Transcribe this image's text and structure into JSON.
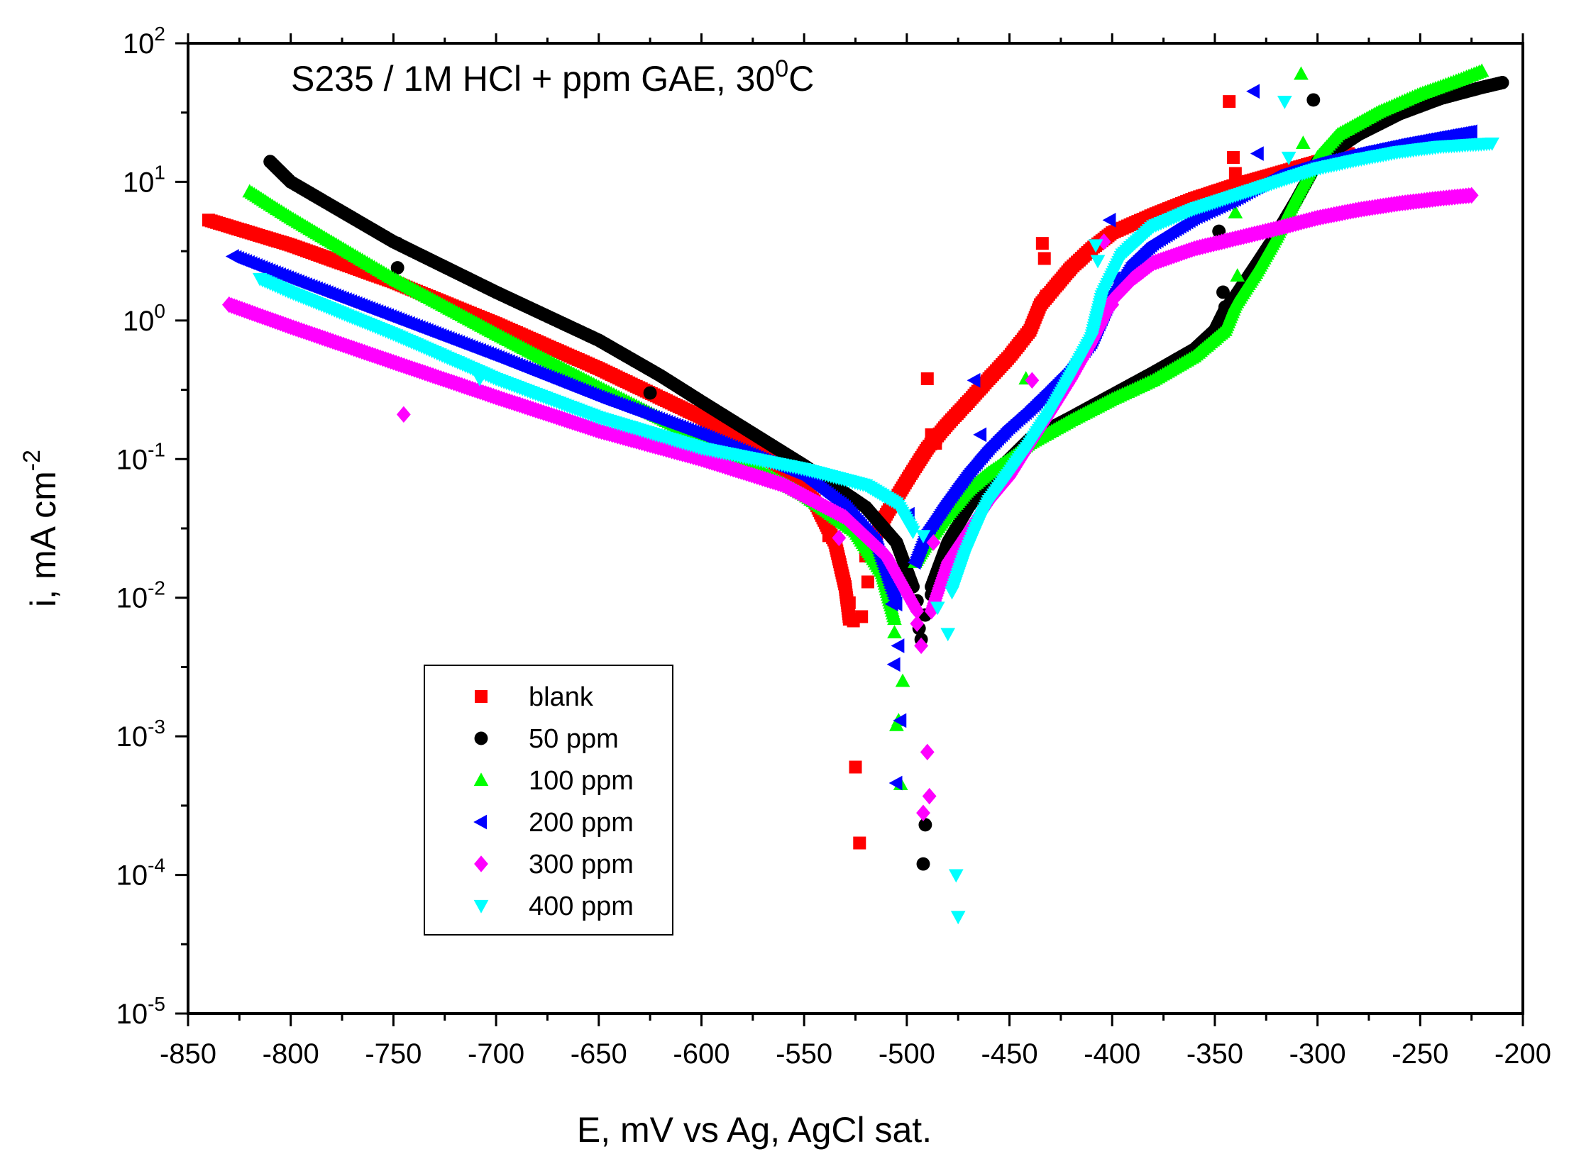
{
  "chart_data": {
    "type": "scatter",
    "title": "S235 / 1M HCl + ppm GAE, 30",
    "title_superscript": "0",
    "title_suffix": "C",
    "xlabel": "E, mV vs Ag, AgCl sat.",
    "ylabel": "i, mA cm",
    "ylabel_superscript": "-2",
    "xlim": [
      -850,
      -200
    ],
    "ylim": [
      1e-05,
      100
    ],
    "y_scale": "log",
    "x_ticks": [
      -850,
      -800,
      -750,
      -700,
      -650,
      -600,
      -550,
      -500,
      -450,
      -400,
      -350,
      -300,
      -250,
      -200
    ],
    "x_tick_labels": [
      "-850",
      "-800",
      "-750",
      "-700",
      "-650",
      "-600",
      "-550",
      "-500",
      "-450",
      "-400",
      "-350",
      "-300",
      "-250",
      "-200"
    ],
    "y_tick_labels": [
      {
        "value": 100,
        "base": "10",
        "exp": "2"
      },
      {
        "value": 10,
        "base": "10",
        "exp": "1"
      },
      {
        "value": 1,
        "base": "10",
        "exp": "0"
      },
      {
        "value": 0.1,
        "base": "10",
        "exp": "-1"
      },
      {
        "value": 0.01,
        "base": "10",
        "exp": "-2"
      },
      {
        "value": 0.001,
        "base": "10",
        "exp": "-3"
      },
      {
        "value": 0.0001,
        "base": "10",
        "exp": "-4"
      },
      {
        "value": 1e-05,
        "base": "10",
        "exp": "-5"
      }
    ],
    "grid": false,
    "legend_position": "bottom-left",
    "series": [
      {
        "name": "blank",
        "marker": "square",
        "color": "#ff0000",
        "cathodic_branch": [
          [
            -840,
            5.3
          ],
          [
            -800,
            3.5
          ],
          [
            -750,
            1.9
          ],
          [
            -700,
            0.95
          ],
          [
            -650,
            0.45
          ],
          [
            -600,
            0.2
          ],
          [
            -560,
            0.085
          ],
          [
            -545,
            0.05
          ],
          [
            -535,
            0.025
          ],
          [
            -530,
            0.012
          ],
          [
            -528,
            0.007
          ]
        ],
        "anodic_branch": [
          [
            -520,
            0.02
          ],
          [
            -510,
            0.04
          ],
          [
            -500,
            0.07
          ],
          [
            -490,
            0.12
          ],
          [
            -480,
            0.18
          ],
          [
            -470,
            0.26
          ],
          [
            -460,
            0.38
          ],
          [
            -450,
            0.55
          ],
          [
            -440,
            0.85
          ],
          [
            -435,
            1.3
          ],
          [
            -430,
            1.6
          ],
          [
            -420,
            2.4
          ],
          [
            -410,
            3.3
          ],
          [
            -400,
            4.3
          ],
          [
            -380,
            5.8
          ],
          [
            -360,
            7.6
          ],
          [
            -340,
            9.5
          ],
          [
            -320,
            11.5
          ],
          [
            -300,
            14.0
          ],
          [
            -285,
            16.0
          ]
        ],
        "scattered_points": [
          [
            -528,
            0.0092
          ],
          [
            -530,
            0.012
          ],
          [
            -526,
            0.0068
          ],
          [
            -522,
            0.0073
          ],
          [
            -519,
            0.013
          ],
          [
            -538,
            0.028
          ],
          [
            -525,
            0.0006
          ],
          [
            -523,
            0.00017
          ],
          [
            -490,
            0.38
          ],
          [
            -488,
            0.15
          ],
          [
            -486,
            0.13
          ],
          [
            -434,
            3.6
          ],
          [
            -433,
            2.8
          ],
          [
            -432,
            1.5
          ],
          [
            -343,
            38
          ],
          [
            -341,
            15
          ],
          [
            -340,
            11.5
          ]
        ]
      },
      {
        "name": "50 ppm",
        "marker": "circle",
        "color": "#000000",
        "cathodic_branch": [
          [
            -810,
            14
          ],
          [
            -800,
            10
          ],
          [
            -750,
            3.7
          ],
          [
            -700,
            1.6
          ],
          [
            -650,
            0.72
          ],
          [
            -620,
            0.4
          ],
          [
            -600,
            0.26
          ],
          [
            -550,
            0.09
          ],
          [
            -520,
            0.045
          ],
          [
            -505,
            0.025
          ],
          [
            -497,
            0.012
          ]
        ],
        "anodic_branch": [
          [
            -488,
            0.012
          ],
          [
            -480,
            0.025
          ],
          [
            -470,
            0.045
          ],
          [
            -460,
            0.07
          ],
          [
            -450,
            0.1
          ],
          [
            -440,
            0.14
          ],
          [
            -420,
            0.2
          ],
          [
            -400,
            0.29
          ],
          [
            -380,
            0.42
          ],
          [
            -360,
            0.62
          ],
          [
            -350,
            0.85
          ],
          [
            -345,
            1.2
          ],
          [
            -340,
            1.5
          ],
          [
            -330,
            2.5
          ],
          [
            -320,
            4.2
          ],
          [
            -310,
            7.5
          ],
          [
            -300,
            14
          ],
          [
            -280,
            22
          ],
          [
            -260,
            31
          ],
          [
            -240,
            40
          ],
          [
            -220,
            48
          ],
          [
            -210,
            52
          ]
        ],
        "scattered_points": [
          [
            -810,
            14
          ],
          [
            -748,
            2.4
          ],
          [
            -748,
            3.6
          ],
          [
            -625,
            0.3
          ],
          [
            -495,
            0.0095
          ],
          [
            -494,
            0.006
          ],
          [
            -493,
            0.005
          ],
          [
            -491,
            0.0075
          ],
          [
            -488,
            0.0105
          ],
          [
            -491,
            0.00023
          ],
          [
            -492,
            0.00012
          ],
          [
            -348,
            4.4
          ],
          [
            -346,
            1.6
          ],
          [
            -345,
            1.25
          ],
          [
            -302,
            39
          ]
        ]
      },
      {
        "name": "100 ppm",
        "marker": "triangle-up",
        "color": "#00ff00",
        "cathodic_branch": [
          [
            -820,
            8.5
          ],
          [
            -800,
            5.5
          ],
          [
            -750,
            2.0
          ],
          [
            -700,
            0.8
          ],
          [
            -650,
            0.33
          ],
          [
            -600,
            0.14
          ],
          [
            -550,
            0.055
          ],
          [
            -525,
            0.03
          ],
          [
            -512,
            0.015
          ],
          [
            -506,
            0.007
          ]
        ],
        "anodic_branch": [
          [
            -496,
            0.018
          ],
          [
            -490,
            0.025
          ],
          [
            -480,
            0.04
          ],
          [
            -470,
            0.06
          ],
          [
            -460,
            0.08
          ],
          [
            -450,
            0.1
          ],
          [
            -440,
            0.13
          ],
          [
            -420,
            0.19
          ],
          [
            -400,
            0.27
          ],
          [
            -380,
            0.37
          ],
          [
            -360,
            0.55
          ],
          [
            -345,
            0.85
          ],
          [
            -340,
            1.3
          ],
          [
            -330,
            2.2
          ],
          [
            -320,
            4.0
          ],
          [
            -310,
            8.0
          ],
          [
            -300,
            15
          ],
          [
            -290,
            22
          ],
          [
            -270,
            32
          ],
          [
            -250,
            43
          ],
          [
            -230,
            55
          ],
          [
            -220,
            63
          ]
        ],
        "scattered_points": [
          [
            -506,
            0.0056
          ],
          [
            -502,
            0.0025
          ],
          [
            -505,
            0.0012
          ],
          [
            -504,
            0.0013
          ],
          [
            -503,
            0.00045
          ],
          [
            -495,
            0.02
          ],
          [
            -442,
            0.38
          ],
          [
            -340,
            6.0
          ],
          [
            -339,
            2.1
          ],
          [
            -308,
            60
          ],
          [
            -307,
            19
          ]
        ]
      },
      {
        "name": "200 ppm",
        "marker": "triangle-left",
        "color": "#0000ff",
        "cathodic_branch": [
          [
            -828,
            2.9
          ],
          [
            -800,
            2.0
          ],
          [
            -750,
            1.05
          ],
          [
            -700,
            0.55
          ],
          [
            -650,
            0.28
          ],
          [
            -600,
            0.15
          ],
          [
            -550,
            0.075
          ],
          [
            -530,
            0.045
          ],
          [
            -515,
            0.025
          ],
          [
            -505,
            0.009
          ]
        ],
        "anodic_branch": [
          [
            -496,
            0.018
          ],
          [
            -490,
            0.03
          ],
          [
            -480,
            0.05
          ],
          [
            -470,
            0.08
          ],
          [
            -460,
            0.12
          ],
          [
            -450,
            0.17
          ],
          [
            -440,
            0.23
          ],
          [
            -430,
            0.32
          ],
          [
            -420,
            0.45
          ],
          [
            -410,
            0.7
          ],
          [
            -400,
            1.5
          ],
          [
            -390,
            2.6
          ],
          [
            -380,
            3.6
          ],
          [
            -360,
            5.5
          ],
          [
            -340,
            7.5
          ],
          [
            -320,
            11
          ],
          [
            -300,
            13.5
          ],
          [
            -280,
            16
          ],
          [
            -260,
            18.5
          ],
          [
            -240,
            21
          ],
          [
            -225,
            23
          ]
        ],
        "scattered_points": [
          [
            -691,
            0.25
          ],
          [
            -506,
            0.0033
          ],
          [
            -504,
            0.0045
          ],
          [
            -503,
            0.0013
          ],
          [
            -505,
            0.00046
          ],
          [
            -507,
            0.009
          ],
          [
            -499,
            0.04
          ],
          [
            -467,
            0.37
          ],
          [
            -464,
            0.15
          ],
          [
            -401,
            5.3
          ],
          [
            -399,
            2.0
          ],
          [
            -331,
            45
          ],
          [
            -329,
            16
          ]
        ]
      },
      {
        "name": "300 ppm",
        "marker": "diamond",
        "color": "#ff00ff",
        "cathodic_branch": [
          [
            -830,
            1.3
          ],
          [
            -800,
            0.9
          ],
          [
            -750,
            0.5
          ],
          [
            -700,
            0.28
          ],
          [
            -650,
            0.16
          ],
          [
            -600,
            0.1
          ],
          [
            -560,
            0.065
          ],
          [
            -530,
            0.038
          ],
          [
            -510,
            0.02
          ],
          [
            -495,
            0.008
          ]
        ],
        "anodic_branch": [
          [
            -488,
            0.008
          ],
          [
            -480,
            0.018
          ],
          [
            -470,
            0.03
          ],
          [
            -460,
            0.05
          ],
          [
            -450,
            0.075
          ],
          [
            -440,
            0.13
          ],
          [
            -430,
            0.22
          ],
          [
            -420,
            0.38
          ],
          [
            -410,
            0.7
          ],
          [
            -400,
            1.4
          ],
          [
            -390,
            2.0
          ],
          [
            -380,
            2.6
          ],
          [
            -360,
            3.3
          ],
          [
            -340,
            3.9
          ],
          [
            -320,
            4.6
          ],
          [
            -300,
            5.5
          ],
          [
            -280,
            6.3
          ],
          [
            -260,
            7.0
          ],
          [
            -240,
            7.6
          ],
          [
            -225,
            8.0
          ]
        ],
        "scattered_points": [
          [
            -745,
            0.21
          ],
          [
            -533,
            0.027
          ],
          [
            -495,
            0.0065
          ],
          [
            -493,
            0.0045
          ],
          [
            -490,
            0.00077
          ],
          [
            -492,
            0.00028
          ],
          [
            -489,
            0.00037
          ],
          [
            -487,
            0.025
          ],
          [
            -439,
            0.37
          ],
          [
            -404,
            3.7
          ],
          [
            -400,
            1.3
          ]
        ]
      },
      {
        "name": "400 ppm",
        "marker": "triangle-down",
        "color": "#00ffff",
        "cathodic_branch": [
          [
            -815,
            2.0
          ],
          [
            -800,
            1.6
          ],
          [
            -750,
            0.8
          ],
          [
            -700,
            0.38
          ],
          [
            -650,
            0.2
          ],
          [
            -600,
            0.12
          ],
          [
            -550,
            0.085
          ],
          [
            -520,
            0.065
          ],
          [
            -505,
            0.048
          ],
          [
            -497,
            0.03
          ]
        ],
        "anodic_branch": [
          [
            -478,
            0.011
          ],
          [
            -472,
            0.02
          ],
          [
            -465,
            0.035
          ],
          [
            -460,
            0.05
          ],
          [
            -450,
            0.08
          ],
          [
            -440,
            0.13
          ],
          [
            -430,
            0.22
          ],
          [
            -420,
            0.4
          ],
          [
            -410,
            0.75
          ],
          [
            -405,
            1.5
          ],
          [
            -395,
            3.0
          ],
          [
            -380,
            4.8
          ],
          [
            -360,
            6.4
          ],
          [
            -340,
            8.0
          ],
          [
            -320,
            10
          ],
          [
            -300,
            12.5
          ],
          [
            -280,
            14.5
          ],
          [
            -260,
            16.5
          ],
          [
            -240,
            18
          ],
          [
            -215,
            19
          ]
        ],
        "scattered_points": [
          [
            -708,
            0.38
          ],
          [
            -485,
            0.0085
          ],
          [
            -480,
            0.0055
          ],
          [
            -476,
            0.0001
          ],
          [
            -475,
            5e-05
          ],
          [
            -492,
            0.028
          ],
          [
            -408,
            3.5
          ],
          [
            -407,
            2.7
          ],
          [
            -316,
            38
          ],
          [
            -314,
            15
          ]
        ]
      }
    ]
  }
}
